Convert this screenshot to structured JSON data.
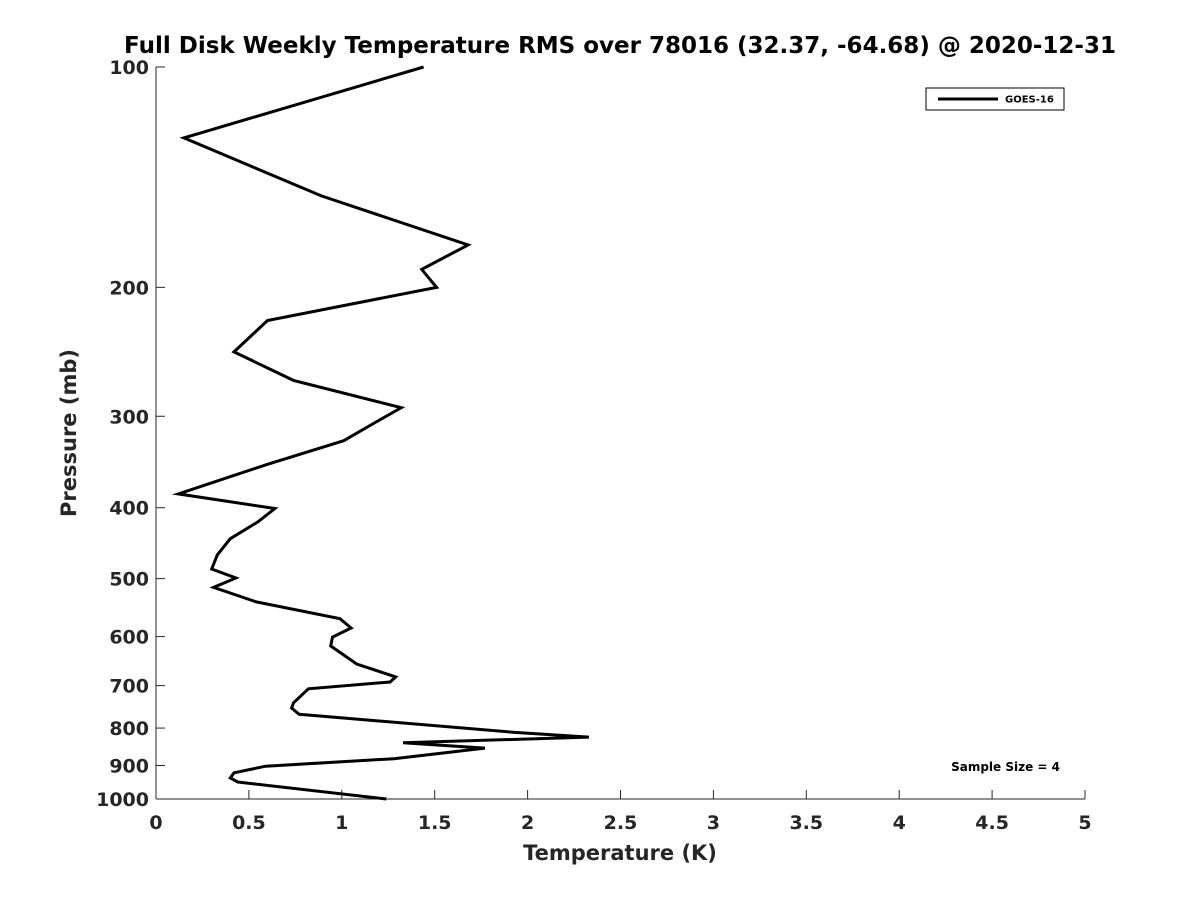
{
  "chart_data": {
    "type": "line",
    "title": "Full Disk Weekly Temperature RMS over 78016 (32.37, -64.68) @ 2020-12-31",
    "xlabel": "Temperature (K)",
    "ylabel": "Pressure (mb)",
    "xlim": [
      0,
      5
    ],
    "ylim": [
      100,
      1000
    ],
    "yscale": "log",
    "y_reversed": true,
    "x_ticks": [
      "0",
      "0.5",
      "1",
      "1.5",
      "2",
      "2.5",
      "3",
      "3.5",
      "4",
      "4.5",
      "5"
    ],
    "y_ticks": [
      "100",
      "200",
      "300",
      "400",
      "500",
      "600",
      "700",
      "800",
      "900",
      "1000"
    ],
    "grid": false,
    "legend": {
      "position": "top-right",
      "entries": [
        "GOES-16"
      ]
    },
    "annotation": "Sample Size = 4",
    "series": [
      {
        "name": "GOES-16",
        "color": "#000000",
        "points": [
          [
            1.44,
            100
          ],
          [
            0.15,
            125
          ],
          [
            0.89,
            150
          ],
          [
            1.68,
            175
          ],
          [
            1.43,
            189
          ],
          [
            1.51,
            200
          ],
          [
            0.6,
            222
          ],
          [
            0.42,
            245
          ],
          [
            0.74,
            268
          ],
          [
            1.32,
            292
          ],
          [
            1.18,
            306
          ],
          [
            1.01,
            324
          ],
          [
            0.6,
            349
          ],
          [
            0.12,
            383
          ],
          [
            0.64,
            401
          ],
          [
            0.55,
            418
          ],
          [
            0.4,
            441
          ],
          [
            0.33,
            464
          ],
          [
            0.3,
            485
          ],
          [
            0.43,
            499
          ],
          [
            0.31,
            514
          ],
          [
            0.54,
            538
          ],
          [
            0.99,
            567
          ],
          [
            1.05,
            584
          ],
          [
            0.95,
            601
          ],
          [
            0.94,
            618
          ],
          [
            1.08,
            654
          ],
          [
            1.29,
            681
          ],
          [
            1.26,
            692
          ],
          [
            0.82,
            707
          ],
          [
            0.74,
            739
          ],
          [
            0.73,
            751
          ],
          [
            0.77,
            766
          ],
          [
            1.93,
            811
          ],
          [
            2.33,
            823
          ],
          [
            1.33,
            838
          ],
          [
            1.77,
            852
          ],
          [
            1.28,
            881
          ],
          [
            0.59,
            902
          ],
          [
            0.42,
            921
          ],
          [
            0.4,
            936
          ],
          [
            0.44,
            948
          ],
          [
            1.24,
            1000
          ]
        ]
      }
    ]
  }
}
